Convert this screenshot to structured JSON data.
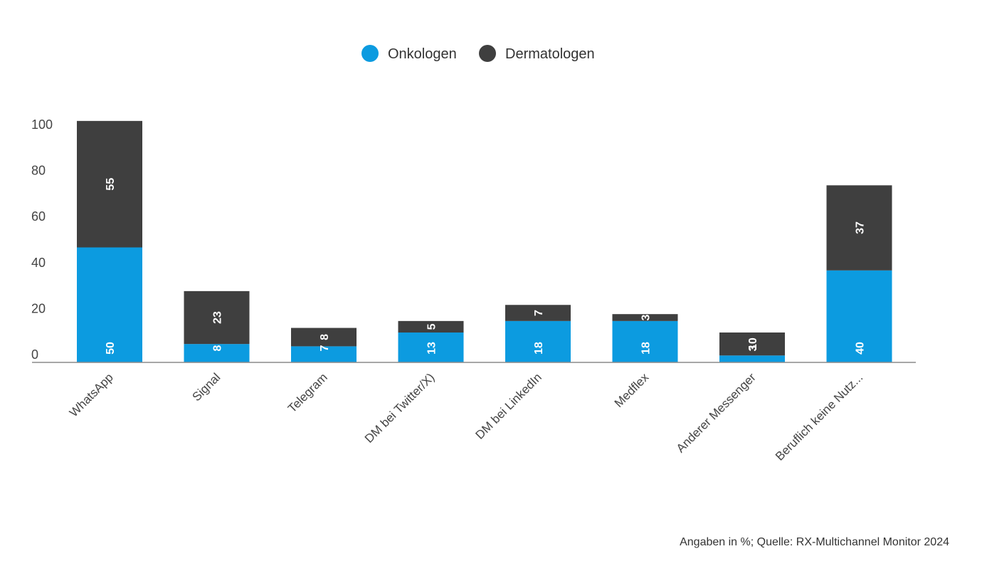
{
  "chart_data": {
    "type": "bar",
    "stacked": true,
    "categories": [
      "WhatsApp",
      "Signal",
      "Telegram",
      "DM bei Twitter/X)",
      "DM bei LinkedIn",
      "Medflex",
      "Anderer Messenger",
      "Beruflich keine Nutz..."
    ],
    "series": [
      {
        "name": "Onkologen",
        "color": "#0c9be0",
        "values": [
          50,
          8,
          7,
          13,
          18,
          18,
          3,
          40
        ],
        "display_heights": [
          50,
          8,
          7,
          13,
          18,
          18,
          3,
          40
        ]
      },
      {
        "name": "Dermatologen",
        "color": "#3f3f3f",
        "values": [
          55,
          23,
          8,
          5,
          7,
          3,
          10,
          37
        ],
        "display_heights": [
          55,
          23,
          8,
          5,
          7,
          3,
          10,
          37
        ]
      }
    ],
    "ylim": [
      0,
      100
    ],
    "yticks": [
      0,
      20,
      40,
      60,
      80,
      100
    ],
    "xlabel": "",
    "ylabel": "",
    "legend_position": "top-center",
    "source": "Angaben in %; Quelle: RX-Multichannel Monitor 2024"
  }
}
